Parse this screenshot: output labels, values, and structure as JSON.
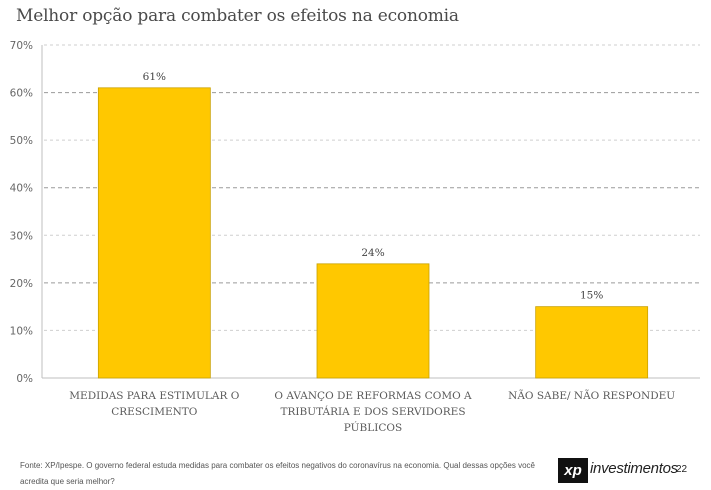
{
  "page": {
    "title": "Melhor opção para combater os efeitos na economia",
    "footer": "Fonte: XP/Ipespe. O governo federal estuda medidas para combater os efeitos negativos do coronavírus na economia. Qual dessas opções você acredita que seria melhor?",
    "brand_mark": "xp",
    "brand_name": "investimentos",
    "page_number": "22"
  },
  "chart_data": {
    "type": "bar",
    "categories": [
      [
        "MEDIDAS PARA ESTIMULAR O",
        "CRESCIMENTO"
      ],
      [
        "O AVANÇO DE REFORMAS COMO A",
        "TRIBUTÁRIA E DOS SERVIDORES",
        "PÚBLICOS"
      ],
      [
        "NÃO SABE/ NÃO RESPONDEU"
      ]
    ],
    "values": [
      61,
      24,
      15
    ],
    "value_labels": [
      "61%",
      "24%",
      "15%"
    ],
    "yticks": [
      "0%",
      "10%",
      "20%",
      "30%",
      "40%",
      "50%",
      "60%",
      "70%"
    ],
    "ylim": [
      0,
      70
    ],
    "grid": true,
    "bar_color": "#FFC800",
    "bar_edge_color": "#C9A200"
  }
}
